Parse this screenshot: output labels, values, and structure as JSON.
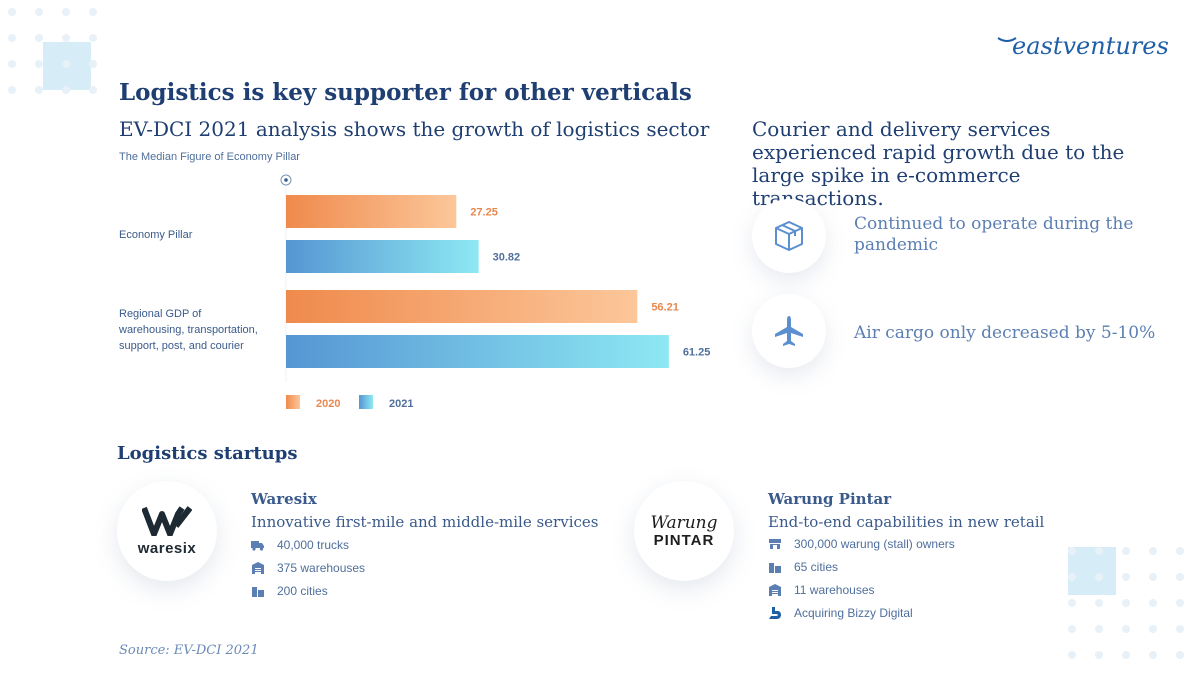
{
  "brand": {
    "logo_text": "eastventures"
  },
  "header": {
    "title": "Logistics is key supporter for other verticals",
    "subtitle": "EV-DCI 2021 analysis shows the growth of logistics sector"
  },
  "chart_data": {
    "type": "bar",
    "orientation": "horizontal",
    "title": "The Median Figure of Economy Pillar",
    "categories": [
      "Economy Pillar",
      "Regional GDP of warehousing, transportation, support, post, and courier"
    ],
    "category_lines": [
      [
        "Economy Pillar"
      ],
      [
        "Regional GDP of",
        "warehousing, transportation,",
        "support, post, and courier"
      ]
    ],
    "series": [
      {
        "name": "2020",
        "values": [
          27.25,
          56.21
        ],
        "color": "#f39a5e"
      },
      {
        "name": "2021",
        "values": [
          30.82,
          61.25
        ],
        "color": "#5b9bd5"
      }
    ],
    "value_labels": [
      [
        "27.25",
        "56.21"
      ],
      [
        "30.82",
        "61.25"
      ]
    ],
    "xlim": [
      0,
      100
    ],
    "grid": false,
    "legend": "bottom"
  },
  "right": {
    "headline": "Courier and delivery services experienced rapid growth due to the large spike in e-commerce transactions.",
    "points": [
      {
        "icon": "package-icon",
        "text": "Continued to operate during the pandemic"
      },
      {
        "icon": "airplane-icon",
        "text": "Air cargo only decreased by 5-10%"
      }
    ]
  },
  "startups": {
    "heading": "Logistics startups",
    "items": [
      {
        "logo_text": "waresix",
        "name": "Waresix",
        "description": "Innovative first-mile and middle-mile services",
        "facts": [
          {
            "icon": "truck-icon",
            "text": "40,000 trucks"
          },
          {
            "icon": "warehouse-icon",
            "text": "375 warehouses"
          },
          {
            "icon": "city-icon",
            "text": "200 cities"
          }
        ]
      },
      {
        "logo_text_top": "Warung",
        "logo_text_bottom": "PINTAR",
        "name": "Warung Pintar",
        "description": "End-to-end capabilities in new retail",
        "facts": [
          {
            "icon": "stall-icon",
            "text": "300,000 warung (stall) owners"
          },
          {
            "icon": "city-icon",
            "text": "65 cities"
          },
          {
            "icon": "warehouse-icon",
            "text": "11 warehouses"
          },
          {
            "icon": "bizzy-icon",
            "text": "Acquiring Bizzy Digital"
          }
        ]
      }
    ]
  },
  "footer": {
    "source": "Source: EV-DCI 2021"
  },
  "colors": {
    "navy": "#1f3f73",
    "accent_blue": "#5b7fb3",
    "orange": "#f39a5e",
    "blue": "#5b9bd5"
  }
}
